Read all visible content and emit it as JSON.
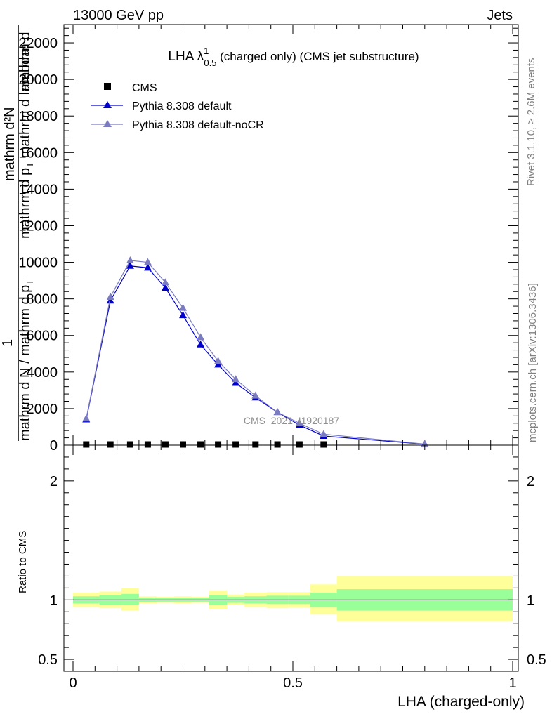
{
  "header": {
    "left": "13000 GeV pp",
    "right": "Jets"
  },
  "side_labels": {
    "rivet": "Rivet 3.1.10, ≥ 2.6M events",
    "mcplots": "mcplots.cern.ch [arXiv:1306.3436]"
  },
  "watermark": "CMS_2021_I1920187",
  "chart_data": [
    {
      "type": "line",
      "title": "LHA λ",
      "title_sup": "1",
      "title_sub": "0.5",
      "title_suffix": " (charged only) (CMS jet substructure)",
      "ylabel_lines": [
        "mathrm d²N",
        "1",
        "mathrm d N / mathrm d p_T mathrm d p_T mathrm d lambda",
        "mathrm d p_T mathrm d mathrm d lambda"
      ],
      "ylabel_numerator": "mathrm d²N",
      "ylabel_one": "1",
      "ylabel_denominator": "mathrm d N / mathrm d p",
      "ylabel_denominator_sub": "T",
      "ylabel_second": "mathrm d p",
      "ylabel_second_sub": "T",
      "ylabel_second_rest": " mathrm d lambda",
      "ylabel_third": "mathrm d",
      "ylim": [
        0,
        23000
      ],
      "xlim": [
        0,
        1
      ],
      "yticks": [
        0,
        2000,
        4000,
        6000,
        8000,
        10000,
        12000,
        14000,
        16000,
        18000,
        20000,
        22000
      ],
      "ytick_labels": [
        "0",
        "2000",
        "4000",
        "6000",
        "8000",
        "10000",
        "12000",
        "14000",
        "16000",
        "18000",
        "20000",
        "22000"
      ],
      "legend_position": "top-left",
      "series": [
        {
          "name": "CMS",
          "marker": "square",
          "color": "#000000",
          "x": [
            0.03,
            0.085,
            0.13,
            0.17,
            0.21,
            0.25,
            0.29,
            0.33,
            0.37,
            0.415,
            0.465,
            0.515,
            0.57
          ],
          "values": [
            30,
            30,
            30,
            30,
            30,
            30,
            30,
            30,
            30,
            30,
            30,
            30,
            30
          ]
        },
        {
          "name": "Pythia 8.308 default",
          "marker": "triangle",
          "color": "#0000cc",
          "x": [
            0.03,
            0.085,
            0.13,
            0.17,
            0.21,
            0.25,
            0.29,
            0.33,
            0.37,
            0.415,
            0.465,
            0.515,
            0.57,
            0.8
          ],
          "values": [
            1400,
            7900,
            9800,
            9700,
            8600,
            7100,
            5500,
            4400,
            3400,
            2600,
            1800,
            1100,
            500,
            50
          ]
        },
        {
          "name": "Pythia 8.308 default-noCR",
          "marker": "triangle",
          "color": "#7b7bbf",
          "x": [
            0.03,
            0.085,
            0.13,
            0.17,
            0.21,
            0.25,
            0.29,
            0.33,
            0.37,
            0.415,
            0.465,
            0.515,
            0.57,
            0.8
          ],
          "values": [
            1450,
            8100,
            10100,
            10000,
            8900,
            7500,
            5900,
            4600,
            3600,
            2700,
            1800,
            1200,
            600,
            60
          ]
        }
      ]
    },
    {
      "type": "area",
      "ylabel": "Ratio to CMS",
      "xlabel": "LHA (charged-only)",
      "ylim": [
        0.4,
        2.3
      ],
      "xlim": [
        0,
        1
      ],
      "yticks": [
        0.5,
        1,
        2
      ],
      "ytick_labels": [
        "0.5",
        "1",
        "2"
      ],
      "xticks": [
        0,
        0.5,
        1
      ],
      "xtick_labels": [
        "0",
        "0.5",
        "1"
      ],
      "reference_line": 1,
      "bands": [
        {
          "x0": 0.0,
          "x1": 0.06,
          "green": [
            0.97,
            1.03
          ],
          "yellow": [
            0.94,
            1.06
          ]
        },
        {
          "x0": 0.06,
          "x1": 0.11,
          "green": [
            0.96,
            1.04
          ],
          "yellow": [
            0.93,
            1.07
          ]
        },
        {
          "x0": 0.11,
          "x1": 0.15,
          "green": [
            0.96,
            1.05
          ],
          "yellow": [
            0.91,
            1.1
          ]
        },
        {
          "x0": 0.15,
          "x1": 0.19,
          "green": [
            0.98,
            1.02
          ],
          "yellow": [
            0.97,
            1.03
          ]
        },
        {
          "x0": 0.19,
          "x1": 0.23,
          "green": [
            0.985,
            1.015
          ],
          "yellow": [
            0.975,
            1.025
          ]
        },
        {
          "x0": 0.23,
          "x1": 0.27,
          "green": [
            0.985,
            1.015
          ],
          "yellow": [
            0.97,
            1.03
          ]
        },
        {
          "x0": 0.27,
          "x1": 0.31,
          "green": [
            0.985,
            1.015
          ],
          "yellow": [
            0.975,
            1.025
          ]
        },
        {
          "x0": 0.31,
          "x1": 0.35,
          "green": [
            0.96,
            1.04
          ],
          "yellow": [
            0.92,
            1.08
          ]
        },
        {
          "x0": 0.35,
          "x1": 0.39,
          "green": [
            0.975,
            1.025
          ],
          "yellow": [
            0.96,
            1.045
          ]
        },
        {
          "x0": 0.39,
          "x1": 0.44,
          "green": [
            0.97,
            1.03
          ],
          "yellow": [
            0.94,
            1.06
          ]
        },
        {
          "x0": 0.44,
          "x1": 0.49,
          "green": [
            0.965,
            1.035
          ],
          "yellow": [
            0.93,
            1.065
          ]
        },
        {
          "x0": 0.49,
          "x1": 0.54,
          "green": [
            0.965,
            1.035
          ],
          "yellow": [
            0.935,
            1.065
          ]
        },
        {
          "x0": 0.54,
          "x1": 0.6,
          "green": [
            0.94,
            1.06
          ],
          "yellow": [
            0.88,
            1.13
          ]
        },
        {
          "x0": 0.6,
          "x1": 1.0,
          "green": [
            0.91,
            1.09
          ],
          "yellow": [
            0.82,
            1.2
          ]
        }
      ]
    }
  ],
  "colors": {
    "band_green": "#99ff99",
    "band_yellow": "#ffff99",
    "cms": "#000000",
    "default": "#0000cc",
    "nocr": "#7b7bbf"
  }
}
